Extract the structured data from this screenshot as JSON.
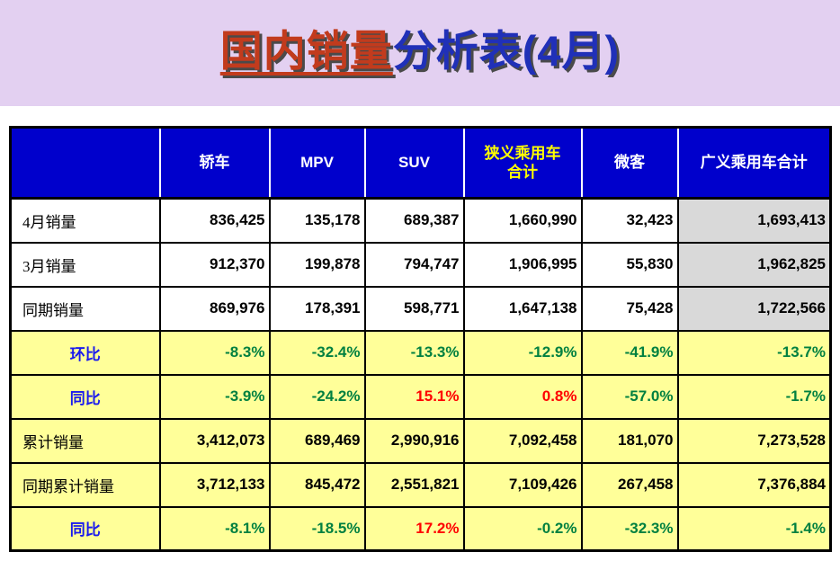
{
  "title": {
    "highlight_part": "国内销量",
    "rest_part": "分析表(4月)"
  },
  "colors": {
    "page_bg": "#E3D0F1",
    "panel_bg": "#FFFFFF",
    "header_bg": "#0000CC",
    "header_text": "#FFFFFF",
    "header_highlight_text": "#FFFF00",
    "yellow_row_bg": "#FFFF99",
    "gray_cell_bg": "#D9D9D9",
    "positive_red": "#FF0000",
    "negative_green": "#008040",
    "ratio_label_blue": "#1A1AEE",
    "title_red": "#C23B1D",
    "title_blue": "#2030B8"
  },
  "table": {
    "columns": [
      {
        "label": ""
      },
      {
        "label": "轿车"
      },
      {
        "label": "MPV"
      },
      {
        "label": "SUV"
      },
      {
        "label": "狭义乘用车\n合计",
        "highlight": true
      },
      {
        "label": "微客"
      },
      {
        "label": "广义乘用车合计"
      }
    ],
    "rows": [
      {
        "id": "april-sales",
        "type": "sales",
        "label": "4月销量",
        "values": [
          "836,425",
          "135,178",
          "689,387",
          "1,660,990",
          "32,423",
          "1,693,413"
        ]
      },
      {
        "id": "march-sales",
        "type": "sales",
        "label": "3月销量",
        "values": [
          "912,370",
          "199,878",
          "794,747",
          "1,906,995",
          "55,830",
          "1,962,825"
        ]
      },
      {
        "id": "same-period-sales",
        "type": "sales",
        "label": "同期销量",
        "values": [
          "869,976",
          "178,391",
          "598,771",
          "1,647,138",
          "75,428",
          "1,722,566"
        ]
      },
      {
        "id": "mom-change",
        "type": "ratio",
        "label": "环比",
        "values": [
          "-8.3%",
          "-32.4%",
          "-13.3%",
          "-12.9%",
          "-41.9%",
          "-13.7%"
        ],
        "value_colors": [
          "green",
          "green",
          "green",
          "green",
          "green",
          "green"
        ]
      },
      {
        "id": "yoy-change",
        "type": "ratio",
        "label": "同比",
        "values": [
          "-3.9%",
          "-24.2%",
          "15.1%",
          "0.8%",
          "-57.0%",
          "-1.7%"
        ],
        "value_colors": [
          "green",
          "green",
          "red",
          "red",
          "green",
          "green"
        ]
      },
      {
        "id": "cumulative-sales",
        "type": "cumulative",
        "label": "累计销量",
        "values": [
          "3,412,073",
          "689,469",
          "2,990,916",
          "7,092,458",
          "181,070",
          "7,273,528"
        ]
      },
      {
        "id": "same-period-cumulative-sales",
        "type": "cumulative",
        "label": "同期累计销量",
        "values": [
          "3,712,133",
          "845,472",
          "2,551,821",
          "7,109,426",
          "267,458",
          "7,376,884"
        ]
      },
      {
        "id": "cumulative-yoy-change",
        "type": "ratio",
        "label": "同比",
        "values": [
          "-8.1%",
          "-18.5%",
          "17.2%",
          "-0.2%",
          "-32.3%",
          "-1.4%"
        ],
        "value_colors": [
          "green",
          "green",
          "red",
          "green",
          "green",
          "green"
        ]
      }
    ]
  }
}
